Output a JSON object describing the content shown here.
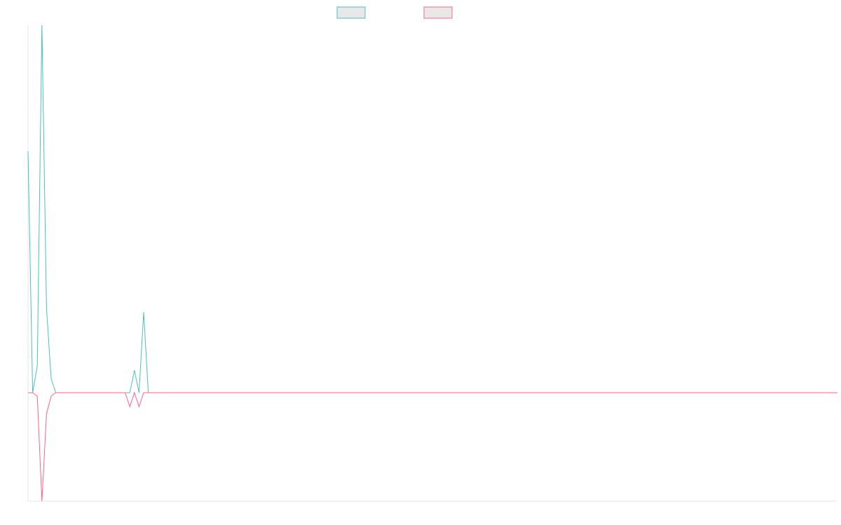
{
  "chart_data": {
    "type": "line",
    "title": "",
    "xlabel": "",
    "ylabel": "",
    "x": [
      0,
      1,
      2,
      3,
      4,
      5,
      6,
      7,
      8,
      9,
      10,
      11,
      12,
      13,
      14,
      15,
      16,
      17,
      18,
      19,
      20,
      21,
      22,
      23,
      24,
      25,
      26,
      27,
      28,
      29,
      30,
      31,
      32,
      33,
      34,
      35,
      36,
      37,
      38,
      39,
      40,
      41,
      42,
      43,
      44,
      45,
      46,
      47,
      48,
      49,
      50,
      51,
      52,
      53,
      54,
      55,
      56,
      57,
      58,
      59,
      60,
      61,
      62,
      63,
      64,
      65,
      66,
      67,
      68,
      69,
      70,
      71,
      72,
      73,
      74,
      75,
      76,
      77,
      78,
      79,
      80,
      81,
      82,
      83,
      84,
      85,
      86,
      87,
      88,
      89,
      90,
      91,
      92,
      93,
      94,
      95,
      96,
      97,
      98,
      99,
      100,
      101,
      102,
      103,
      104,
      105,
      106,
      107,
      108,
      109,
      110,
      111,
      112,
      113,
      114,
      115,
      116,
      117,
      118,
      119,
      120,
      121,
      122,
      123,
      124,
      125,
      126,
      127,
      128,
      129,
      130,
      131,
      132,
      133,
      134,
      135,
      136,
      137,
      138,
      139,
      140,
      141,
      142,
      143,
      144,
      145,
      146,
      147,
      148,
      149,
      150,
      151,
      152,
      153,
      154,
      155,
      156,
      157,
      158,
      159,
      160,
      161,
      162,
      163,
      164,
      165,
      166,
      167,
      168,
      169,
      170,
      171,
      172,
      173,
      174,
      175
    ],
    "series": [
      {
        "name": "",
        "color": "#4BC0C0",
        "values": [
          345,
          0,
          38,
          525,
          120,
          20,
          0,
          0,
          0,
          0,
          0,
          0,
          0,
          0,
          0,
          0,
          0,
          0,
          0,
          0,
          0,
          0,
          0,
          32,
          0,
          115,
          0,
          0,
          0,
          0,
          0,
          0,
          0,
          0,
          0,
          0,
          0,
          0,
          0,
          0,
          0,
          0,
          0,
          0,
          0,
          0,
          0,
          0,
          0,
          0,
          0,
          0,
          0,
          0,
          0,
          0,
          0,
          0,
          0,
          0,
          0,
          0,
          0,
          0,
          0,
          0,
          0,
          0,
          0,
          0,
          0,
          0,
          0,
          0,
          0,
          0,
          0,
          0,
          0,
          0,
          0,
          0,
          0,
          0,
          0,
          0,
          0,
          0,
          0,
          0,
          0,
          0,
          0,
          0,
          0,
          0,
          0,
          0,
          0,
          0,
          0,
          0,
          0,
          0,
          0,
          0,
          0,
          0,
          0,
          0,
          0,
          0,
          0,
          0,
          0,
          0,
          0,
          0,
          0,
          0,
          0,
          0,
          0,
          0,
          0,
          0,
          0,
          0,
          0,
          0,
          0,
          0,
          0,
          0,
          0,
          0,
          0,
          0,
          0,
          0,
          0,
          0,
          0,
          0,
          0,
          0,
          0,
          0,
          0,
          0,
          0,
          0,
          0,
          0,
          0,
          0,
          0,
          0,
          0,
          0,
          0,
          0,
          0,
          0,
          0,
          0,
          0,
          0,
          0,
          0,
          0,
          0,
          0,
          0,
          0,
          0
        ]
      },
      {
        "name": "",
        "color": "#FF6384",
        "values": [
          0,
          0,
          -5,
          -155,
          -30,
          -5,
          0,
          0,
          0,
          0,
          0,
          0,
          0,
          0,
          0,
          0,
          0,
          0,
          0,
          0,
          0,
          0,
          -20,
          0,
          -20,
          0,
          0,
          0,
          0,
          0,
          0,
          0,
          0,
          0,
          0,
          0,
          0,
          0,
          0,
          0,
          0,
          0,
          0,
          0,
          0,
          0,
          0,
          0,
          0,
          0,
          0,
          0,
          0,
          0,
          0,
          0,
          0,
          0,
          0,
          0,
          0,
          0,
          0,
          0,
          0,
          0,
          0,
          0,
          0,
          0,
          0,
          0,
          0,
          0,
          0,
          0,
          0,
          0,
          0,
          0,
          0,
          0,
          0,
          0,
          0,
          0,
          0,
          0,
          0,
          0,
          0,
          0,
          0,
          0,
          0,
          0,
          0,
          0,
          0,
          0,
          0,
          0,
          0,
          0,
          0,
          0,
          0,
          0,
          0,
          0,
          0,
          0,
          0,
          0,
          0,
          0,
          0,
          0,
          0,
          0,
          0,
          0,
          0,
          0,
          0,
          0,
          0,
          0,
          0,
          0,
          0,
          0,
          0,
          0,
          0,
          0,
          0,
          0,
          0,
          0,
          0,
          0,
          0,
          0,
          0,
          0,
          0,
          0,
          0,
          0,
          0,
          0,
          0,
          0,
          0,
          0,
          0,
          0,
          0,
          0,
          0,
          0,
          0,
          0,
          0,
          0,
          0,
          0,
          0,
          0,
          0,
          0,
          0,
          0,
          0,
          0
        ]
      }
    ],
    "ylim": [
      -155,
      525
    ],
    "xlim": [
      0,
      175
    ],
    "grid": false,
    "legend": "top-center"
  }
}
